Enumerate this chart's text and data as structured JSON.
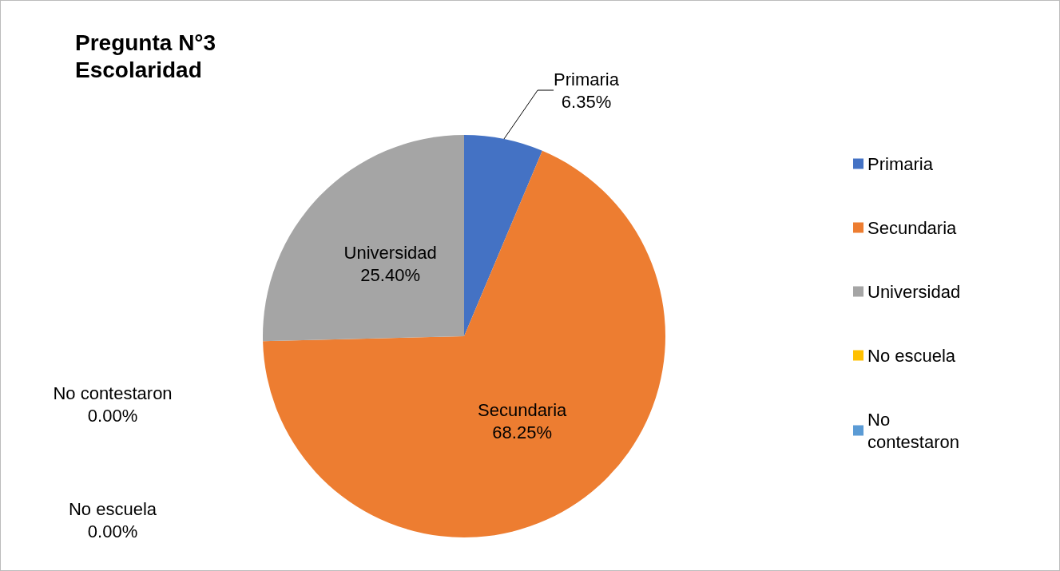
{
  "chart_data": {
    "type": "pie",
    "title": "Pregunta N°3\nEscolaridad",
    "categories": [
      "Primaria",
      "Secundaria",
      "Universidad",
      "No escuela",
      "No contestaron"
    ],
    "values": [
      6.35,
      68.25,
      25.4,
      0,
      0
    ],
    "colors": [
      "#4472c4",
      "#ed7d31",
      "#a5a5a5",
      "#ffc000",
      "#5b9bd5"
    ],
    "value_labels": [
      "6.35%",
      "68.25%",
      "25.40%",
      "0.00%",
      "0.00%"
    ],
    "legend": "right"
  }
}
